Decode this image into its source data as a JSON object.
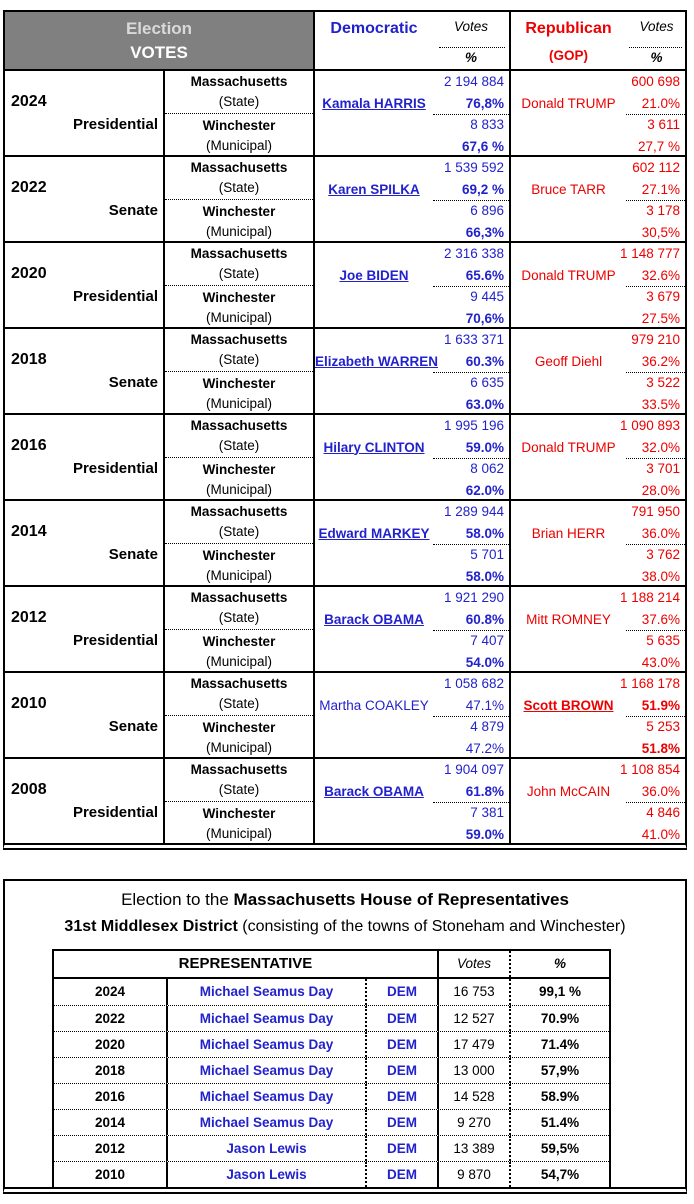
{
  "colors": {
    "dem_blue": "#2222CC",
    "rep_red": "#ED0000",
    "header_gray": "#808080",
    "header_text_light": "#D9D9D9",
    "header_text_white": "#FFFFFF"
  },
  "t1": {
    "header": {
      "title_line1": "Election",
      "title_line2": "VOTES",
      "dem": "Democratic",
      "rep": "Republican",
      "rep_sub": "(GOP)",
      "votes": "Votes",
      "pct": "%"
    },
    "labels": {
      "state_name": "Massachusetts",
      "state_sub": "(State)",
      "muni_name": "Winchester",
      "muni_sub": "(Municipal)"
    },
    "blocks": [
      {
        "year": "2024",
        "type": "Presidential",
        "dem": {
          "name": "Kamala HARRIS",
          "winner": true,
          "state_votes": "2 194 884",
          "state_pct": "76,8%",
          "muni_votes": "8 833",
          "muni_pct": "67,6 %"
        },
        "rep": {
          "name": "Donald TRUMP",
          "winner": false,
          "state_votes": "600 698",
          "state_pct": "21.0%",
          "muni_votes": "3 611",
          "muni_pct": "27,7 %"
        }
      },
      {
        "year": "2022",
        "type": "Senate",
        "dem": {
          "name": "Karen SPILKA",
          "winner": true,
          "state_votes": "1 539 592",
          "state_pct": "69,2 %",
          "muni_votes": "6 896",
          "muni_pct": "66,3%"
        },
        "rep": {
          "name": "Bruce TARR",
          "winner": false,
          "state_votes": "602 112",
          "state_pct": "27.1%",
          "muni_votes": "3 178",
          "muni_pct": "30,5%"
        }
      },
      {
        "year": "2020",
        "type": "Presidential",
        "dem": {
          "name": "Joe BIDEN",
          "winner": true,
          "state_votes": "2 316 338",
          "state_pct": "65.6%",
          "muni_votes": "9 445",
          "muni_pct": "70,6%"
        },
        "rep": {
          "name": "Donald TRUMP",
          "winner": false,
          "state_votes": "1 148 777",
          "state_pct": "32.6%",
          "muni_votes": "3 679",
          "muni_pct": "27.5%"
        }
      },
      {
        "year": "2018",
        "type": "Senate",
        "dem": {
          "name": "Elizabeth WARREN",
          "winner": true,
          "state_votes": "1 633 371",
          "state_pct": "60.3%",
          "muni_votes": "6 635",
          "muni_pct": "63.0%"
        },
        "rep": {
          "name": "Geoff Diehl",
          "winner": false,
          "state_votes": "979 210",
          "state_pct": "36.2%",
          "muni_votes": "3 522",
          "muni_pct": "33.5%"
        }
      },
      {
        "year": "2016",
        "type": "Presidential",
        "dem": {
          "name": "Hilary CLINTON",
          "winner": true,
          "state_votes": "1 995 196",
          "state_pct": "59.0%",
          "muni_votes": "8 062",
          "muni_pct": "62.0%"
        },
        "rep": {
          "name": "Donald TRUMP",
          "winner": false,
          "state_votes": "1 090 893",
          "state_pct": "32.0%",
          "muni_votes": "3 701",
          "muni_pct": "28.0%"
        }
      },
      {
        "year": "2014",
        "type": "Senate",
        "dem": {
          "name": "Edward MARKEY",
          "winner": true,
          "state_votes": "1 289 944",
          "state_pct": "58.0%",
          "muni_votes": "5 701",
          "muni_pct": "58.0%"
        },
        "rep": {
          "name": "Brian HERR",
          "winner": false,
          "state_votes": "791 950",
          "state_pct": "36.0%",
          "muni_votes": "3 762",
          "muni_pct": "38.0%"
        }
      },
      {
        "year": "2012",
        "type": "Presidential",
        "dem": {
          "name": "Barack OBAMA",
          "winner": true,
          "state_votes": "1 921 290",
          "state_pct": "60.8%",
          "muni_votes": "7 407",
          "muni_pct": "54.0%"
        },
        "rep": {
          "name": "Mitt ROMNEY",
          "winner": false,
          "state_votes": "1 188 214",
          "state_pct": "37.6%",
          "muni_votes": "5 635",
          "muni_pct": "43.0%"
        }
      },
      {
        "year": "2010",
        "type": "Senate",
        "dem": {
          "name": "Martha COAKLEY",
          "winner": false,
          "state_votes": "1 058 682",
          "state_pct": "47.1%",
          "muni_votes": "4 879",
          "muni_pct": "47.2%"
        },
        "rep": {
          "name": "Scott BROWN",
          "winner": true,
          "state_votes": "1 168 178",
          "state_pct": "51.9%",
          "muni_votes": "5 253",
          "muni_pct": "51.8%"
        }
      },
      {
        "year": "2008",
        "type": "Presidential",
        "dem": {
          "name": "Barack OBAMA",
          "winner": true,
          "state_votes": "1 904 097",
          "state_pct": "61.8%",
          "muni_votes": "7 381",
          "muni_pct": "59.0%"
        },
        "rep": {
          "name": "John McCAIN",
          "winner": false,
          "state_votes": "1 108 854",
          "state_pct": "36.0%",
          "muni_votes": "4 846",
          "muni_pct": "41.0%"
        }
      }
    ]
  },
  "bottom": {
    "title_prefix": "Election to the ",
    "title_bold": "Massachusetts House of Representatives",
    "subtitle_bold": "31st  Middlesex District",
    "subtitle_rest": " (consisting of the towns of Stoneham and Winchester)",
    "table": {
      "header": {
        "representative": "REPRESENTATIVE",
        "votes": "Votes",
        "pct": "%"
      },
      "rows": [
        {
          "year": "2024",
          "name": "Michael Seamus Day",
          "party": "DEM",
          "votes": "16 753",
          "pct": "99,1 %"
        },
        {
          "year": "2022",
          "name": "Michael Seamus Day",
          "party": "DEM",
          "votes": "12 527",
          "pct": "70.9%"
        },
        {
          "year": "2020",
          "name": "Michael Seamus Day",
          "party": "DEM",
          "votes": "17 479",
          "pct": "71.4%"
        },
        {
          "year": "2018",
          "name": "Michael Seamus Day",
          "party": "DEM",
          "votes": "13 000",
          "pct": "57,9%"
        },
        {
          "year": "2016",
          "name": "Michael Seamus Day",
          "party": "DEM",
          "votes": "14 528",
          "pct": "58.9%"
        },
        {
          "year": "2014",
          "name": "Michael Seamus Day",
          "party": "DEM",
          "votes": "9 270",
          "pct": "51.4%"
        },
        {
          "year": "2012",
          "name": "Jason Lewis",
          "party": "DEM",
          "votes": "13 389",
          "pct": "59,5%"
        },
        {
          "year": "2010",
          "name": "Jason Lewis",
          "party": "DEM",
          "votes": "9 870",
          "pct": "54,7%"
        }
      ]
    }
  }
}
